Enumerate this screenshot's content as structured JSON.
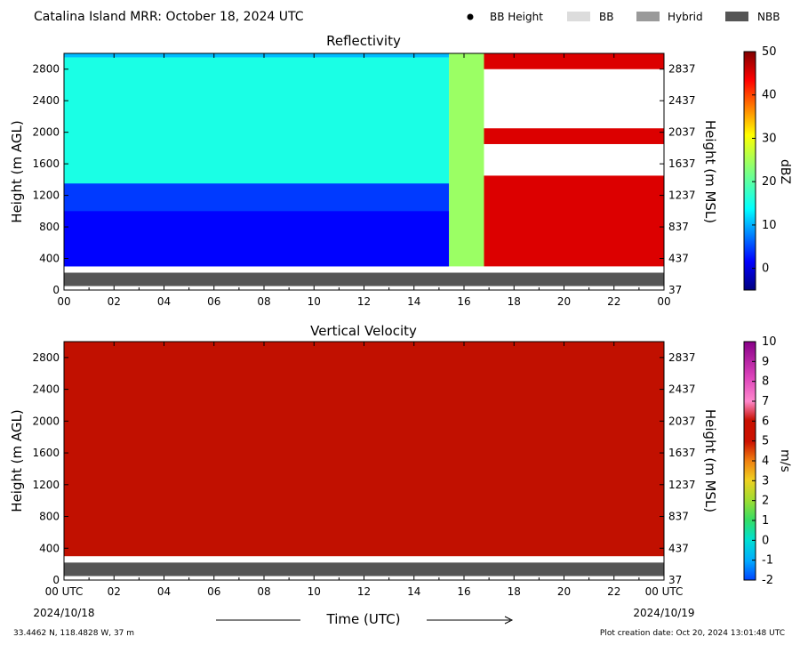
{
  "header": {
    "title": "Catalina Island MRR:  October 18, 2024 UTC",
    "legend": [
      {
        "label": "BB Height",
        "marker": "dot",
        "color": "#000000"
      },
      {
        "label": "BB",
        "marker": "box",
        "color": "#dcdcdc"
      },
      {
        "label": "Hybrid",
        "marker": "box",
        "color": "#9a9a9a"
      },
      {
        "label": "NBB",
        "marker": "box",
        "color": "#555555"
      }
    ]
  },
  "chart_data": [
    {
      "type": "heatmap",
      "title": "Reflectivity",
      "ylabel": "Height (m AGL)",
      "ylabel_right": "Height (m MSL)",
      "xlim": [
        0,
        24
      ],
      "ylim": [
        0,
        3000
      ],
      "x_ticks": [
        "00",
        "02",
        "04",
        "06",
        "08",
        "10",
        "12",
        "14",
        "16",
        "18",
        "20",
        "22",
        "00"
      ],
      "y_ticks_left": [
        "0",
        "400",
        "800",
        "1200",
        "1600",
        "2000",
        "2400",
        "2800"
      ],
      "y_ticks_right": [
        "37",
        "437",
        "837",
        "1237",
        "1637",
        "2037",
        "2437",
        "2837"
      ],
      "colorbar": {
        "label": "dBZ",
        "range": [
          -5,
          50
        ],
        "ticks": [
          "0",
          "10",
          "20",
          "30",
          "40",
          "50"
        ],
        "colormap": "jet"
      },
      "regions": [
        {
          "x": [
            0,
            15.4
          ],
          "y": [
            300,
            3000
          ],
          "dbz": 12
        },
        {
          "x": [
            0,
            15.4
          ],
          "y": [
            1350,
            2950
          ],
          "dbz": 17
        },
        {
          "x": [
            0,
            15.4
          ],
          "y": [
            300,
            1350
          ],
          "dbz": 5
        },
        {
          "x": [
            0,
            15.4
          ],
          "y": [
            300,
            1000
          ],
          "dbz": 2
        },
        {
          "x": [
            15.4,
            16.8
          ],
          "y": [
            300,
            3000
          ],
          "dbz": 24
        },
        {
          "x": [
            16.8,
            24
          ],
          "y": [
            300,
            1450
          ],
          "dbz": 45
        },
        {
          "x": [
            16.8,
            24
          ],
          "y": [
            1850,
            2050
          ],
          "dbz": 45
        },
        {
          "x": [
            16.8,
            24
          ],
          "y": [
            2800,
            3000
          ],
          "dbz": 45
        }
      ],
      "band": {
        "y": [
          50,
          220
        ],
        "class": "NBB"
      }
    },
    {
      "type": "heatmap",
      "title": "Vertical Velocity",
      "ylabel": "Height (m AGL)",
      "ylabel_right": "Height (m MSL)",
      "xlim": [
        0,
        24
      ],
      "ylim": [
        0,
        3000
      ],
      "x_ticks": [
        "00 UTC",
        "02",
        "04",
        "06",
        "08",
        "10",
        "12",
        "14",
        "16",
        "18",
        "20",
        "22",
        "00 UTC"
      ],
      "x_date_start": "2024/10/18",
      "x_date_end": "2024/10/19",
      "y_ticks_left": [
        "0",
        "400",
        "800",
        "1200",
        "1600",
        "2000",
        "2400",
        "2800"
      ],
      "y_ticks_right": [
        "37",
        "437",
        "837",
        "1237",
        "1637",
        "2037",
        "2437",
        "2837"
      ],
      "colorbar": {
        "label": "m/s",
        "range": [
          -2,
          10
        ],
        "ticks": [
          "-2",
          "-1",
          "0",
          "1",
          "2",
          "3",
          "4",
          "5",
          "6",
          "7",
          "8",
          "9",
          "10"
        ]
      },
      "regions": [
        {
          "x": [
            0,
            24
          ],
          "y": [
            300,
            3000
          ],
          "ms": 6
        }
      ],
      "band": {
        "y": [
          50,
          220
        ],
        "class": "NBB"
      }
    }
  ],
  "footer": {
    "xlabel": "Time (UTC)",
    "location": "33.4462 N, 118.4828 W, 37 m",
    "creation": "Plot creation date: Oct 20, 2024 13:01:48 UTC"
  }
}
